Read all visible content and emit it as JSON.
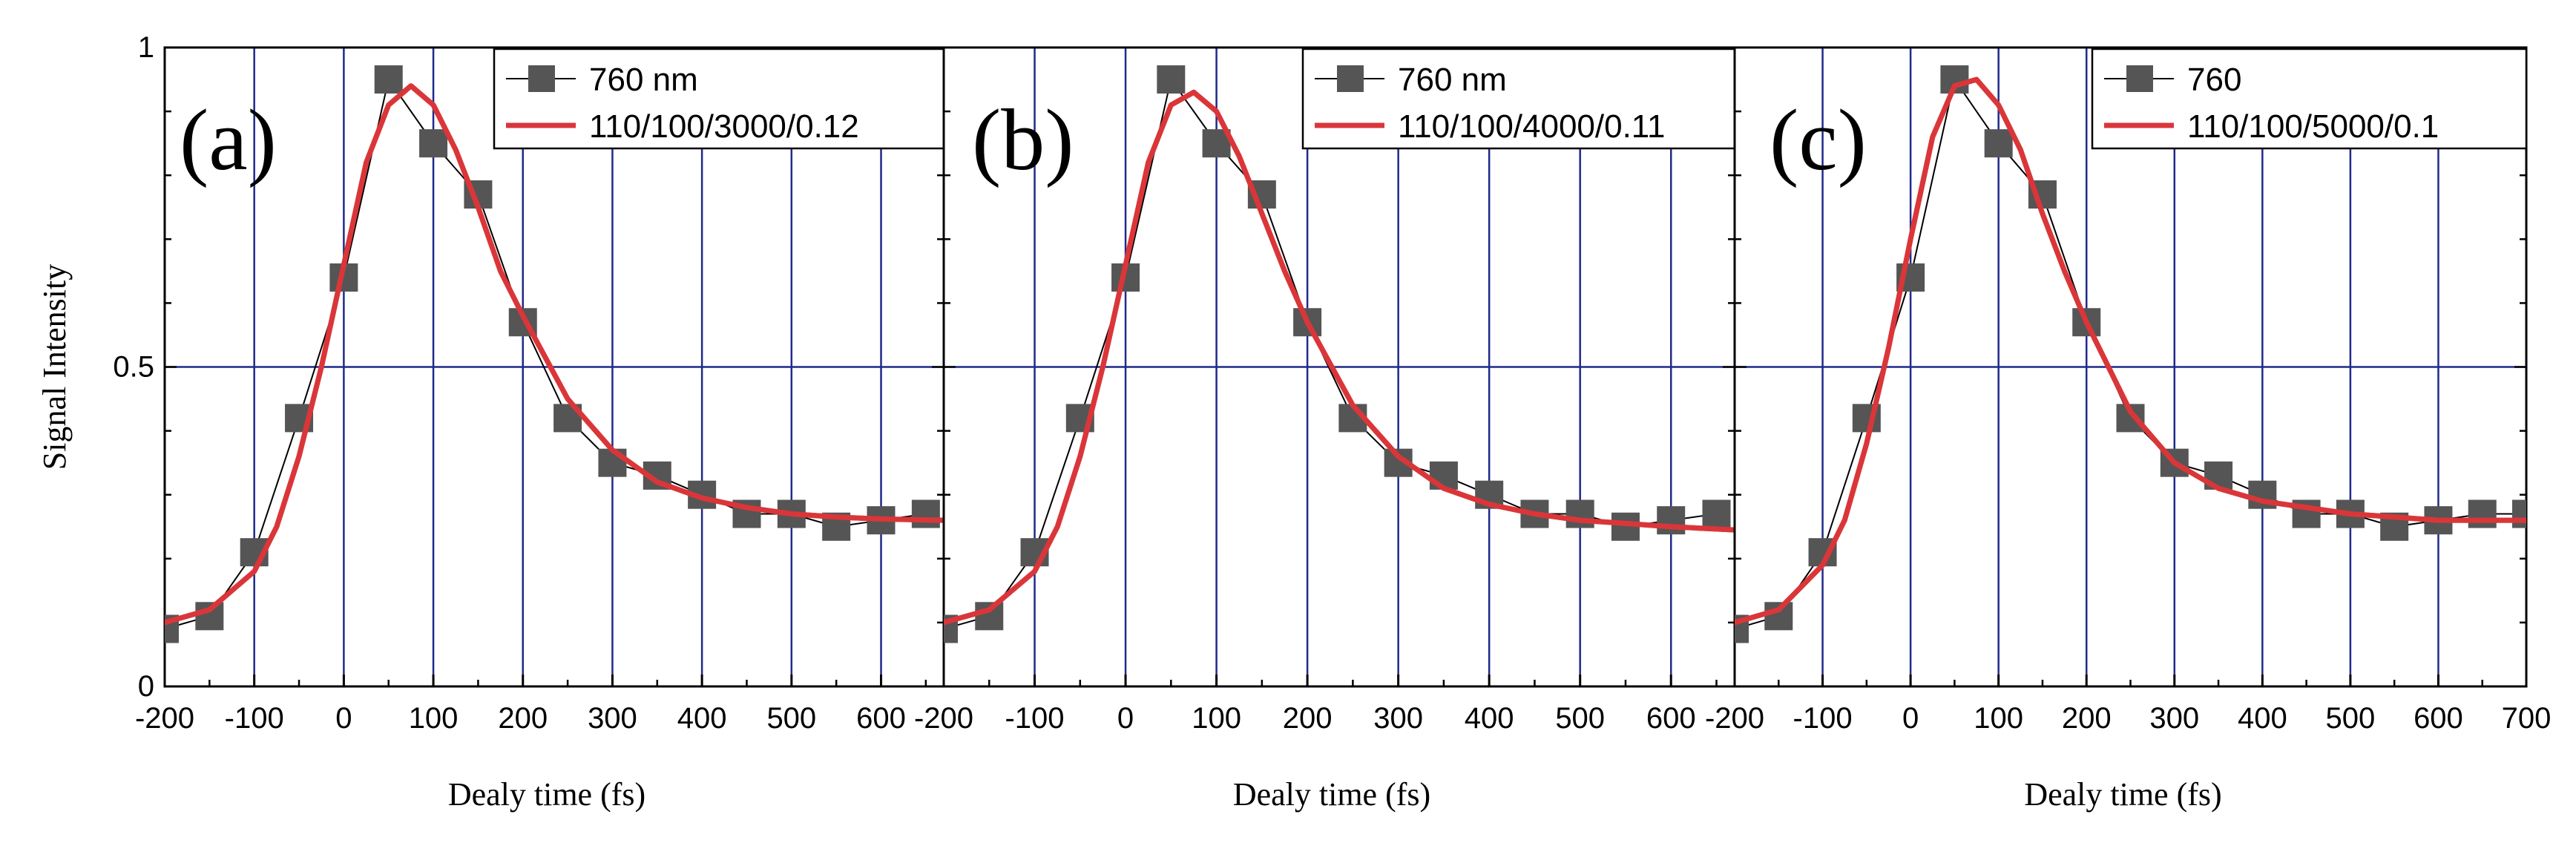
{
  "chart_data": [
    {
      "type": "line",
      "panel_label": "(a)",
      "xlabel": "Dealy time (fs)",
      "ylabel": "Signal Intensity",
      "xlim": [
        -200,
        670
      ],
      "ylim": [
        0,
        1
      ],
      "x_ticks": [
        -200,
        -100,
        0,
        100,
        200,
        300,
        400,
        500,
        600
      ],
      "x_tick_labels": [
        "-200",
        "-100",
        "0",
        "100",
        "200",
        "300",
        "400",
        "500",
        "600"
      ],
      "y_ticks": [
        0,
        0.5,
        1
      ],
      "y_tick_labels": [
        "0",
        "0.5",
        "1"
      ],
      "grid": true,
      "legend_position": "top-right",
      "series": [
        {
          "name": "760 nm",
          "style": "markers-line",
          "color": "#555555",
          "x": [
            -200,
            -150,
            -100,
            -50,
            0,
            50,
            100,
            150,
            200,
            250,
            300,
            350,
            400,
            450,
            500,
            550,
            600,
            650
          ],
          "values": [
            0.09,
            0.11,
            0.21,
            0.42,
            0.64,
            0.95,
            0.85,
            0.77,
            0.57,
            0.42,
            0.35,
            0.33,
            0.3,
            0.27,
            0.27,
            0.25,
            0.26,
            0.27
          ]
        },
        {
          "name": "110/100/3000/0.12",
          "style": "line",
          "color": "#d9363a",
          "x": [
            -200,
            -150,
            -100,
            -75,
            -50,
            -25,
            0,
            25,
            50,
            75,
            100,
            125,
            150,
            175,
            200,
            250,
            300,
            350,
            400,
            450,
            500,
            550,
            600,
            670
          ],
          "values": [
            0.1,
            0.12,
            0.18,
            0.25,
            0.36,
            0.5,
            0.66,
            0.82,
            0.91,
            0.94,
            0.91,
            0.84,
            0.75,
            0.65,
            0.58,
            0.45,
            0.37,
            0.32,
            0.295,
            0.28,
            0.27,
            0.265,
            0.262,
            0.26
          ]
        }
      ]
    },
    {
      "type": "line",
      "panel_label": "(b)",
      "xlabel": "Dealy time (fs)",
      "ylabel": "",
      "xlim": [
        -200,
        670
      ],
      "ylim": [
        0,
        1
      ],
      "x_ticks": [
        -200,
        -100,
        0,
        100,
        200,
        300,
        400,
        500,
        600
      ],
      "x_tick_labels": [
        "-200",
        "-100",
        "0",
        "100",
        "200",
        "300",
        "400",
        "500",
        "600"
      ],
      "y_ticks": [
        0,
        0.5,
        1
      ],
      "y_tick_labels": [],
      "grid": true,
      "legend_position": "top-right",
      "series": [
        {
          "name": "760 nm",
          "style": "markers-line",
          "color": "#555555",
          "x": [
            -200,
            -150,
            -100,
            -50,
            0,
            50,
            100,
            150,
            200,
            250,
            300,
            350,
            400,
            450,
            500,
            550,
            600,
            650
          ],
          "values": [
            0.09,
            0.11,
            0.21,
            0.42,
            0.64,
            0.95,
            0.85,
            0.77,
            0.57,
            0.42,
            0.35,
            0.33,
            0.3,
            0.27,
            0.27,
            0.25,
            0.26,
            0.27
          ]
        },
        {
          "name": "110/100/4000/0.11",
          "style": "line",
          "color": "#d9363a",
          "x": [
            -200,
            -150,
            -100,
            -75,
            -50,
            -25,
            0,
            25,
            50,
            75,
            100,
            125,
            150,
            175,
            200,
            250,
            300,
            350,
            400,
            450,
            500,
            550,
            600,
            670
          ],
          "values": [
            0.1,
            0.12,
            0.18,
            0.25,
            0.36,
            0.5,
            0.66,
            0.82,
            0.91,
            0.93,
            0.9,
            0.83,
            0.74,
            0.65,
            0.57,
            0.44,
            0.36,
            0.31,
            0.285,
            0.27,
            0.26,
            0.255,
            0.25,
            0.245
          ]
        }
      ]
    },
    {
      "type": "line",
      "panel_label": "(c)",
      "xlabel": "Dealy time (fs)",
      "ylabel": "",
      "xlim": [
        -200,
        700
      ],
      "ylim": [
        0,
        1
      ],
      "x_ticks": [
        -200,
        -100,
        0,
        100,
        200,
        300,
        400,
        500,
        600,
        700
      ],
      "x_tick_labels": [
        "-200",
        "-100",
        "0",
        "100",
        "200",
        "300",
        "400",
        "500",
        "600",
        "700"
      ],
      "y_ticks": [
        0,
        0.5,
        1
      ],
      "y_tick_labels": [],
      "grid": true,
      "legend_position": "top-right",
      "series": [
        {
          "name": "760",
          "style": "markers-line",
          "color": "#555555",
          "x": [
            -200,
            -150,
            -100,
            -50,
            0,
            50,
            100,
            150,
            200,
            250,
            300,
            350,
            400,
            450,
            500,
            550,
            600,
            650,
            700
          ],
          "values": [
            0.09,
            0.11,
            0.21,
            0.42,
            0.64,
            0.95,
            0.85,
            0.77,
            0.57,
            0.42,
            0.35,
            0.33,
            0.3,
            0.27,
            0.27,
            0.25,
            0.26,
            0.27,
            0.27
          ]
        },
        {
          "name": "110/100/5000/0.1",
          "style": "line",
          "color": "#d9363a",
          "x": [
            -200,
            -150,
            -100,
            -75,
            -50,
            -25,
            0,
            25,
            50,
            75,
            100,
            125,
            150,
            175,
            200,
            250,
            300,
            350,
            400,
            450,
            500,
            550,
            600,
            650,
            700
          ],
          "values": [
            0.1,
            0.12,
            0.19,
            0.26,
            0.38,
            0.53,
            0.7,
            0.86,
            0.94,
            0.95,
            0.91,
            0.84,
            0.74,
            0.65,
            0.57,
            0.43,
            0.35,
            0.31,
            0.29,
            0.28,
            0.27,
            0.265,
            0.26,
            0.26,
            0.26
          ]
        }
      ]
    }
  ]
}
